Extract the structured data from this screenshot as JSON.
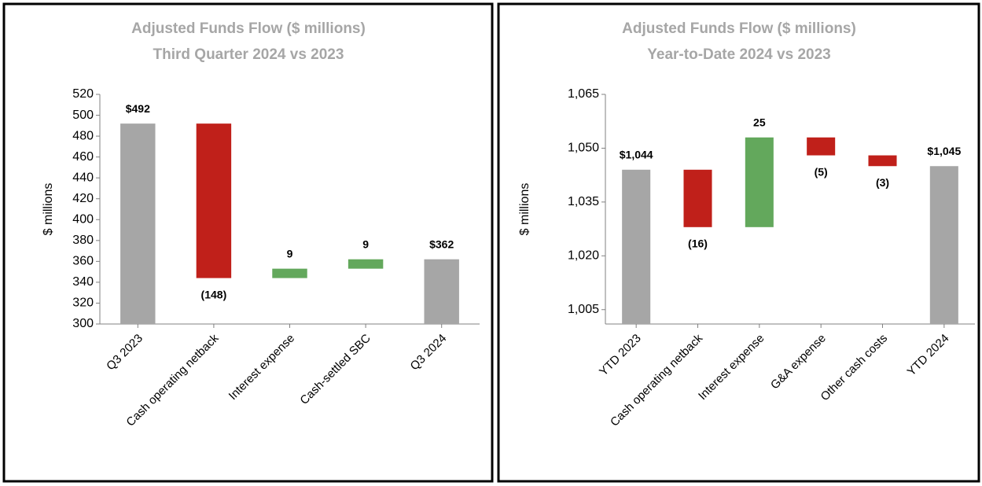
{
  "chart_data": [
    {
      "type": "waterfall",
      "title": "Adjusted Funds Flow ($ millions)",
      "subtitle": "Third Quarter 2024 vs 2023",
      "y_label": "$ millions",
      "categories": [
        "Q3 2023",
        "Cash operating netback",
        "Interest expense",
        "Cash-settled SBC",
        "Q3 2024"
      ],
      "values": [
        492,
        -148,
        9,
        9,
        362
      ],
      "value_labels": [
        "$492",
        "(148)",
        "9",
        "9",
        "$362"
      ],
      "totals": [
        true,
        false,
        false,
        false,
        true
      ],
      "total_color": "#a6a6a6",
      "increase_color": "#63a85c",
      "decrease_color": "#c0201a",
      "ylim": [
        300,
        520
      ],
      "yticks": [
        300,
        320,
        340,
        360,
        380,
        400,
        420,
        440,
        460,
        480,
        500,
        520
      ]
    },
    {
      "type": "waterfall",
      "title": "Adjusted Funds Flow ($ millions)",
      "subtitle": "Year-to-Date 2024 vs 2023",
      "y_label": "$ millions",
      "categories": [
        "YTD 2023",
        "Cash operating netback",
        "Interest expense",
        "G&A expense",
        "Other cash costs",
        "YTD 2024"
      ],
      "values": [
        1044,
        -16,
        25,
        -5,
        -3,
        1045
      ],
      "value_labels": [
        "$1,044",
        "(16)",
        "25",
        "(5)",
        "(3)",
        "$1,045"
      ],
      "totals": [
        true,
        false,
        false,
        false,
        false,
        true
      ],
      "total_color": "#a6a6a6",
      "increase_color": "#63a85c",
      "decrease_color": "#c0201a",
      "ylim": [
        1001,
        1065
      ],
      "yticks": [
        {
          "value": 1005,
          "label": "1,005"
        },
        {
          "value": 1020,
          "label": "1,020"
        },
        {
          "value": 1035,
          "label": "1,035"
        },
        {
          "value": 1050,
          "label": "1,050"
        },
        {
          "value": 1065,
          "label": "1,065"
        }
      ]
    }
  ]
}
